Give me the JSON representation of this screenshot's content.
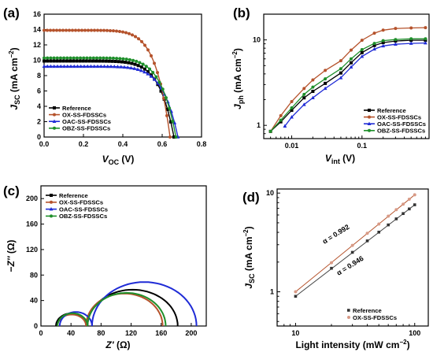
{
  "chart_data": [
    {
      "panel": "(a)",
      "type": "line",
      "xlabel": "VOC (V)",
      "ylabel": "JSC (mA cm−2)",
      "xlim": [
        0.0,
        0.8
      ],
      "ylim": [
        0,
        16
      ],
      "xticks": [
        "0.0",
        "0.2",
        "0.4",
        "0.6",
        "0.8"
      ],
      "yticks": [
        "0",
        "2",
        "4",
        "6",
        "8",
        "10",
        "12",
        "14",
        "16"
      ],
      "legend_position": "bottom-left",
      "series": [
        {
          "name": "Reference",
          "color": "#000000",
          "jsc": 9.9,
          "voc": 0.66
        },
        {
          "name": "OX-SS-FDSSCs",
          "color": "#b5522b",
          "jsc": 13.9,
          "voc": 0.64
        },
        {
          "name": "OAC-SS-FDSSCs",
          "color": "#1f2bd6",
          "jsc": 9.2,
          "voc": 0.68
        },
        {
          "name": "OBZ-SS-FDSSCs",
          "color": "#1e8f2a",
          "jsc": 10.3,
          "voc": 0.67
        }
      ]
    },
    {
      "panel": "(b)",
      "type": "line",
      "xlabel": "Vint (V)",
      "ylabel": "Jph (mA cm−2)",
      "xscale": "log",
      "yscale": "log",
      "xlim": [
        0.004,
        0.9
      ],
      "ylim": [
        0.7,
        20
      ],
      "xticks": [
        "0.01",
        "0.1"
      ],
      "yticks": [
        "1",
        "10"
      ],
      "legend_position": "bottom-right",
      "series": [
        {
          "name": "Reference",
          "color": "#000000",
          "x": [
            0.005,
            0.007,
            0.01,
            0.015,
            0.02,
            0.03,
            0.05,
            0.07,
            0.1,
            0.15,
            0.2,
            0.3,
            0.5,
            0.8
          ],
          "y": [
            0.85,
            1.1,
            1.5,
            2.1,
            2.5,
            3.1,
            4.1,
            5.4,
            7.1,
            8.6,
            9.3,
            9.7,
            9.9,
            9.9
          ]
        },
        {
          "name": "OX-SS-FDSSCs",
          "color": "#b5522b",
          "x": [
            0.005,
            0.007,
            0.01,
            0.015,
            0.02,
            0.03,
            0.05,
            0.07,
            0.1,
            0.15,
            0.2,
            0.3,
            0.5,
            0.8
          ],
          "y": [
            0.85,
            1.3,
            1.9,
            2.7,
            3.4,
            4.4,
            5.7,
            7.6,
            9.9,
            12.0,
            13.0,
            13.6,
            13.8,
            13.9
          ]
        },
        {
          "name": "OAC-SS-FDSSCs",
          "color": "#1f2bd6",
          "x": [
            0.008,
            0.01,
            0.015,
            0.02,
            0.03,
            0.05,
            0.07,
            0.1,
            0.15,
            0.2,
            0.3,
            0.5,
            0.8
          ],
          "y": [
            0.98,
            1.25,
            1.75,
            2.1,
            2.7,
            3.6,
            4.8,
            6.4,
            7.8,
            8.5,
            8.9,
            9.1,
            9.2
          ]
        },
        {
          "name": "OBZ-SS-FDSSCs",
          "color": "#1e8f2a",
          "x": [
            0.005,
            0.007,
            0.01,
            0.015,
            0.02,
            0.03,
            0.05,
            0.07,
            0.1,
            0.15,
            0.2,
            0.3,
            0.5,
            0.8
          ],
          "y": [
            0.85,
            1.15,
            1.6,
            2.3,
            2.8,
            3.5,
            4.6,
            6.0,
            7.7,
            9.1,
            9.8,
            10.1,
            10.3,
            10.3
          ]
        }
      ]
    },
    {
      "panel": "(c)",
      "type": "scatter",
      "xlabel": "Z' (Ω)",
      "ylabel": "−Z'' (Ω)",
      "xlim": [
        0,
        220
      ],
      "ylim": [
        0,
        220
      ],
      "xticks": [
        "0",
        "40",
        "80",
        "120",
        "160",
        "200"
      ],
      "yticks": [
        "0",
        "40",
        "80",
        "120",
        "160",
        "200"
      ],
      "legend_position": "top-right",
      "series": [
        {
          "name": "Reference",
          "color": "#000000",
          "arcs": [
            {
              "start": 20,
              "end": 62,
              "height": 20
            },
            {
              "start": 62,
              "end": 182,
              "height": 57
            }
          ]
        },
        {
          "name": "OX-SS-FDSSCs",
          "color": "#b5522b",
          "arcs": [
            {
              "start": 22,
              "end": 60,
              "height": 18
            },
            {
              "start": 60,
              "end": 162,
              "height": 51
            }
          ]
        },
        {
          "name": "OAC-SS-FDSSCs",
          "color": "#1f2bd6",
          "arcs": [
            {
              "start": 25,
              "end": 68,
              "height": 22
            },
            {
              "start": 68,
              "end": 207,
              "height": 69
            }
          ]
        },
        {
          "name": "OBZ-SS-FDSSCs",
          "color": "#1e8f2a",
          "arcs": [
            {
              "start": 22,
              "end": 62,
              "height": 20
            },
            {
              "start": 62,
              "end": 166,
              "height": 52
            }
          ]
        }
      ]
    },
    {
      "panel": "(d)",
      "type": "scatter",
      "xlabel": "Light intensity (mW cm−2)",
      "ylabel": "JSC (mA cm−2)",
      "xscale": "log",
      "yscale": "log",
      "xlim": [
        7,
        130
      ],
      "ylim": [
        0.45,
        11
      ],
      "xticks": [
        "10",
        "100"
      ],
      "yticks": [
        "1",
        "10"
      ],
      "legend_position": "bottom-right",
      "annotations": [
        "α = 0.992",
        "α = 0.946"
      ],
      "series": [
        {
          "name": "Reference",
          "color": "#333333",
          "x": [
            10,
            20,
            30,
            40,
            50,
            60,
            70,
            80,
            90,
            100
          ],
          "y": [
            0.9,
            1.73,
            2.51,
            3.28,
            4.02,
            4.76,
            5.48,
            6.2,
            6.91,
            7.61
          ]
        },
        {
          "name": "OX-SS-FDSSCs",
          "color": "#d89a86",
          "x": [
            10,
            20,
            30,
            40,
            50,
            60,
            70,
            80,
            90,
            100
          ],
          "y": [
            1.0,
            1.97,
            2.95,
            3.91,
            4.86,
            5.83,
            6.79,
            7.73,
            8.67,
            9.6
          ]
        }
      ]
    }
  ]
}
